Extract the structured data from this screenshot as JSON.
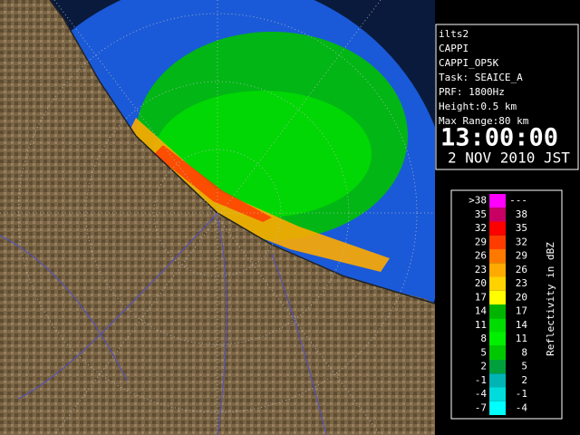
{
  "info": {
    "lines": [
      "ilts2",
      "CAPPI",
      "CAPPI_OP5K",
      "Task: SEAICE_A",
      "PRF: 1800Hz",
      "Height:0.5 km",
      "Max Range:80 km"
    ],
    "time": "13:00:00",
    "date": "2 NOV 2010 JST"
  },
  "legend": {
    "title": "Reflectivity in dBZ",
    "rows": [
      {
        "low": ">38",
        "high": "---",
        "color": "#ff00ff"
      },
      {
        "low": "35",
        "high": "38",
        "color": "#c80064"
      },
      {
        "low": "32",
        "high": "35",
        "color": "#ff0000"
      },
      {
        "low": "29",
        "high": "32",
        "color": "#ff3c00"
      },
      {
        "low": "26",
        "high": "29",
        "color": "#ff7800"
      },
      {
        "low": "23",
        "high": "26",
        "color": "#ffaa00"
      },
      {
        "low": "20",
        "high": "23",
        "color": "#ffd200"
      },
      {
        "low": "17",
        "high": "20",
        "color": "#ffff00"
      },
      {
        "low": "14",
        "high": "17",
        "color": "#00b400"
      },
      {
        "low": "11",
        "high": "14",
        "color": "#00dc00"
      },
      {
        "low": "8",
        "high": "11",
        "color": "#00f000"
      },
      {
        "low": "5",
        "high": "8",
        "color": "#00c800"
      },
      {
        "low": "2",
        "high": "5",
        "color": "#00a03c"
      },
      {
        "low": "-1",
        "high": "2",
        "color": "#00b4b4"
      },
      {
        "low": "-4",
        "high": "-1",
        "color": "#00dcdc"
      },
      {
        "low": "-7",
        "high": "-4",
        "color": "#00ffff"
      }
    ]
  }
}
